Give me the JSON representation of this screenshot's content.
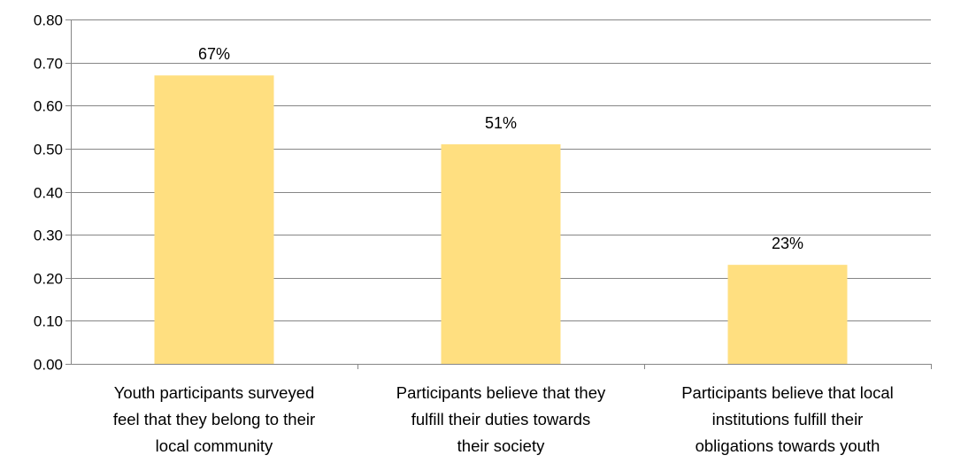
{
  "chart_data": {
    "type": "bar",
    "categories": [
      [
        "Youth participants surveyed",
        "feel that they belong to their",
        "local community"
      ],
      [
        "Participants believe that they",
        "fulfill their duties towards",
        "their society"
      ],
      [
        "Participants believe that local",
        "institutions fulfill their",
        "obligations towards youth"
      ]
    ],
    "values": [
      0.67,
      0.51,
      0.23
    ],
    "data_labels": [
      "67%",
      "51%",
      "23%"
    ],
    "ylim": [
      0,
      0.8
    ],
    "yticks": [
      "0.00",
      "0.10",
      "0.20",
      "0.30",
      "0.40",
      "0.50",
      "0.60",
      "0.70",
      "0.80"
    ],
    "grid": true,
    "legend": "none",
    "colors": {
      "bar": "#FFDF80",
      "grid": "#868686",
      "axis": "#868686"
    }
  }
}
